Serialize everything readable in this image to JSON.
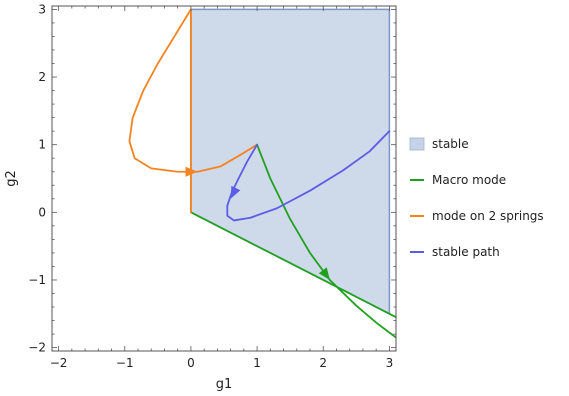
{
  "chart_data": {
    "type": "line",
    "xlabel": "g1",
    "ylabel": "g2",
    "xlim": [
      -2.1,
      3.1
    ],
    "ylim": [
      -2.05,
      3.05
    ],
    "x_ticks": [
      -2,
      -1,
      0,
      1,
      2,
      3
    ],
    "y_ticks": [
      -2,
      -1,
      0,
      1,
      2,
      3
    ],
    "x_tick_labels": [
      "−2",
      "−1",
      "0",
      "1",
      "2",
      "3"
    ],
    "y_tick_labels": [
      "−2",
      "−1",
      "0",
      "1",
      "2",
      "3"
    ],
    "grid": false,
    "legend_position": "right",
    "region": {
      "name": "stable",
      "color": "#C5D3E6",
      "edge_color": "#7B97C9",
      "polygon": [
        [
          0,
          3
        ],
        [
          3,
          3
        ],
        [
          3,
          -1.5
        ],
        [
          0,
          0
        ]
      ]
    },
    "series": [
      {
        "name": "Macro mode",
        "color": "#1FA11F",
        "segments": [
          [
            [
              0,
              0
            ],
            [
              3.1,
              -1.55
            ]
          ],
          [
            [
              1,
              1
            ],
            [
              1.2,
              0.5
            ],
            [
              1.5,
              -0.1
            ],
            [
              1.8,
              -0.6
            ],
            [
              2.1,
              -1.0
            ],
            [
              2.5,
              -1.38
            ],
            [
              2.8,
              -1.63
            ],
            [
              3.1,
              -1.85
            ]
          ]
        ],
        "arrow": [
          2.1,
          -1.0
        ]
      },
      {
        "name": "mode on 2 springs",
        "color": "#F5831F",
        "segments": [
          [
            [
              0,
              0
            ],
            [
              0,
              3
            ]
          ],
          [
            [
              0,
              3
            ],
            [
              -0.25,
              2.6
            ],
            [
              -0.5,
              2.2
            ],
            [
              -0.72,
              1.8
            ],
            [
              -0.88,
              1.4
            ],
            [
              -0.93,
              1.05
            ],
            [
              -0.85,
              0.8
            ],
            [
              -0.6,
              0.65
            ],
            [
              -0.2,
              0.6
            ],
            [
              0.1,
              0.6
            ],
            [
              0.45,
              0.68
            ],
            [
              0.75,
              0.85
            ],
            [
              1,
              1
            ]
          ]
        ],
        "arrow": [
          0.1,
          0.6
        ]
      },
      {
        "name": "stable path",
        "color": "#5C5CE6",
        "segments": [
          [
            [
              1,
              1
            ],
            [
              0.85,
              0.75
            ],
            [
              0.72,
              0.5
            ],
            [
              0.62,
              0.3
            ],
            [
              0.55,
              0.1
            ],
            [
              0.55,
              -0.05
            ],
            [
              0.65,
              -0.12
            ],
            [
              0.9,
              -0.08
            ],
            [
              1.3,
              0.06
            ],
            [
              1.8,
              0.32
            ],
            [
              2.3,
              0.62
            ],
            [
              2.7,
              0.9
            ],
            [
              3,
              1.2
            ]
          ]
        ],
        "arrow": [
          0.6,
          0.2
        ]
      }
    ],
    "legend": [
      {
        "label": "stable",
        "kind": "swatch",
        "color": "#C5D3E6"
      },
      {
        "label": "Macro mode",
        "kind": "line",
        "color": "#1FA11F"
      },
      {
        "label": "mode on 2 springs",
        "kind": "line",
        "color": "#F5831F"
      },
      {
        "label": "stable path",
        "kind": "line",
        "color": "#5C5CE6"
      }
    ]
  }
}
